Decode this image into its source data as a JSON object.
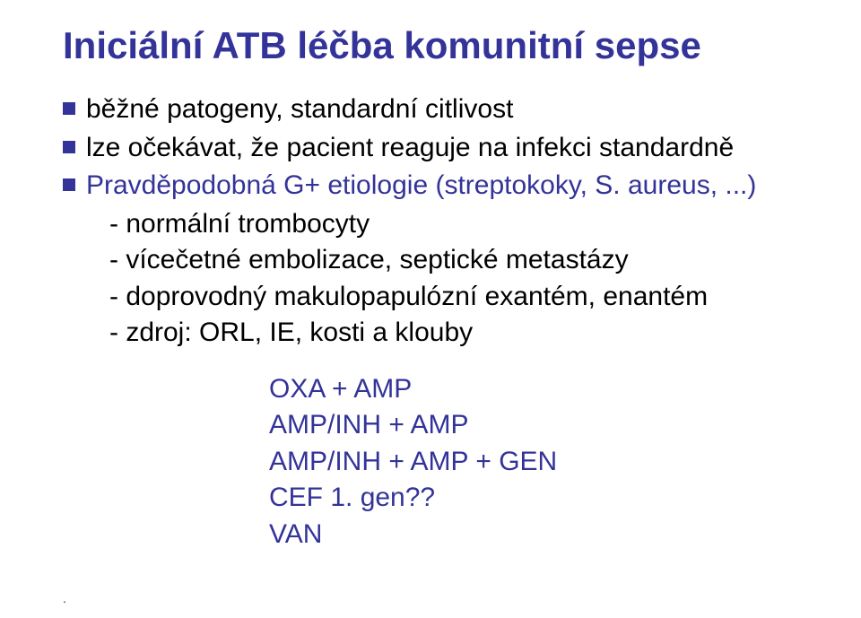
{
  "title": "Iniciální ATB léčba komunitní sepse",
  "colors": {
    "title": "#333399",
    "bullet": "#333399",
    "body_text": "#000000",
    "emph_text": "#333399",
    "background": "#ffffff"
  },
  "typography": {
    "family": "Arial",
    "title_size": 42,
    "body_size": 30,
    "title_weight": 700,
    "body_weight": 400
  },
  "bullets": [
    {
      "text": "běžné patogeny, standardní citlivost",
      "is_emph": false
    },
    {
      "text": "lze očekávat, že pacient reaguje na infekci standardně",
      "is_emph": false
    },
    {
      "text": "Pravděpodobná G+ etiologie (streptokoky, S. aureus, ...)",
      "is_emph": true
    }
  ],
  "sublines": [
    "- normální trombocyty",
    "- vícečetné embolizace, septické metastázy",
    "- doprovodný makulopapulózní exantém, enantém",
    "- zdroj: ORL, IE, kosti a klouby"
  ],
  "recommendations": [
    "OXA + AMP",
    "AMP/INH + AMP",
    "AMP/INH + AMP + GEN",
    "CEF 1. gen??",
    "VAN"
  ],
  "footer": "."
}
